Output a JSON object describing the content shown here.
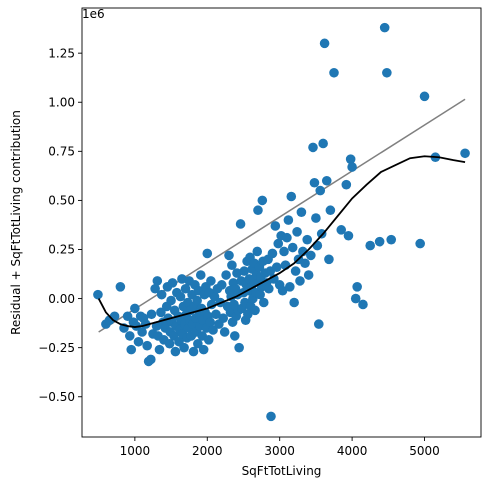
{
  "chart_data": {
    "type": "scatter",
    "xlabel": "SqFtTotLiving",
    "ylabel": "Residual + SqFtTotLiving contribution",
    "y_offset_label": "1e6",
    "xlim": [
      270,
      5780
    ],
    "ylim": [
      -0.705,
      1.48
    ],
    "y_scale_note": "y values in units of 1e6",
    "grid": false,
    "x_ticks": [
      {
        "value": 1000,
        "label": "1000"
      },
      {
        "value": 2000,
        "label": "2000"
      },
      {
        "value": 3000,
        "label": "3000"
      },
      {
        "value": 4000,
        "label": "4000"
      },
      {
        "value": 5000,
        "label": "5000"
      }
    ],
    "y_ticks": [
      {
        "value": -0.5,
        "label": "−0.50"
      },
      {
        "value": -0.25,
        "label": "−0.25"
      },
      {
        "value": 0.0,
        "label": "0.00"
      },
      {
        "value": 0.25,
        "label": "0.25"
      },
      {
        "value": 0.5,
        "label": "0.50"
      },
      {
        "value": 0.75,
        "label": "0.75"
      },
      {
        "value": 1.0,
        "label": "1.00"
      },
      {
        "value": 1.25,
        "label": "1.25"
      }
    ],
    "colors": {
      "points": "#1f77b4",
      "linear_fit": "#808080",
      "smooth_fit": "#000000",
      "axes": "#000000"
    },
    "linear_fit": [
      [
        500,
        -0.17
      ],
      [
        5560,
        1.015
      ]
    ],
    "smooth_fit": [
      [
        500,
        0.0
      ],
      [
        600,
        -0.07
      ],
      [
        700,
        -0.11
      ],
      [
        800,
        -0.13
      ],
      [
        900,
        -0.14
      ],
      [
        1000,
        -0.145
      ],
      [
        1100,
        -0.14
      ],
      [
        1200,
        -0.13
      ],
      [
        1400,
        -0.11
      ],
      [
        1600,
        -0.09
      ],
      [
        1800,
        -0.07
      ],
      [
        2000,
        -0.05
      ],
      [
        2200,
        -0.02
      ],
      [
        2400,
        0.01
      ],
      [
        2600,
        0.05
      ],
      [
        2800,
        0.09
      ],
      [
        3000,
        0.13
      ],
      [
        3200,
        0.18
      ],
      [
        3400,
        0.25
      ],
      [
        3600,
        0.33
      ],
      [
        3800,
        0.42
      ],
      [
        4000,
        0.51
      ],
      [
        4200,
        0.58
      ],
      [
        4400,
        0.645
      ],
      [
        4600,
        0.68
      ],
      [
        4800,
        0.715
      ],
      [
        5000,
        0.725
      ],
      [
        5200,
        0.72
      ],
      [
        5400,
        0.705
      ],
      [
        5560,
        0.695
      ]
    ],
    "points": [
      [
        490,
        0.02
      ],
      [
        600,
        -0.13
      ],
      [
        650,
        -0.11
      ],
      [
        720,
        -0.09
      ],
      [
        800,
        0.06
      ],
      [
        850,
        -0.15
      ],
      [
        900,
        -0.09
      ],
      [
        930,
        -0.19
      ],
      [
        950,
        -0.26
      ],
      [
        980,
        -0.12
      ],
      [
        1000,
        -0.05
      ],
      [
        1020,
        -0.14
      ],
      [
        1050,
        -0.22
      ],
      [
        1080,
        -0.09
      ],
      [
        1100,
        -0.17
      ],
      [
        1120,
        -0.1
      ],
      [
        1150,
        -0.13
      ],
      [
        1170,
        -0.24
      ],
      [
        1190,
        -0.32
      ],
      [
        1220,
        -0.31
      ],
      [
        1230,
        -0.08
      ],
      [
        1250,
        -0.18
      ],
      [
        1280,
        0.05
      ],
      [
        1300,
        -0.14
      ],
      [
        1310,
        0.09
      ],
      [
        1320,
        -0.19
      ],
      [
        1340,
        -0.26
      ],
      [
        1360,
        -0.07
      ],
      [
        1370,
        0.02
      ],
      [
        1390,
        -0.12
      ],
      [
        1400,
        -0.21
      ],
      [
        1420,
        -0.15
      ],
      [
        1440,
        -0.04
      ],
      [
        1450,
        0.06
      ],
      [
        1460,
        -0.1
      ],
      [
        1480,
        -0.23
      ],
      [
        1490,
        -0.17
      ],
      [
        1500,
        -0.01
      ],
      [
        1510,
        -0.12
      ],
      [
        1520,
        0.08
      ],
      [
        1540,
        -0.19
      ],
      [
        1550,
        -0.06
      ],
      [
        1560,
        -0.27
      ],
      [
        1570,
        -0.14
      ],
      [
        1580,
        0.03
      ],
      [
        1600,
        -0.09
      ],
      [
        1610,
        -0.22
      ],
      [
        1620,
        -0.16
      ],
      [
        1630,
        0.01
      ],
      [
        1640,
        -0.11
      ],
      [
        1650,
        0.1
      ],
      [
        1660,
        -0.18
      ],
      [
        1670,
        -0.04
      ],
      [
        1680,
        -0.25
      ],
      [
        1690,
        -0.13
      ],
      [
        1700,
        0.05
      ],
      [
        1710,
        -0.08
      ],
      [
        1720,
        -0.2
      ],
      [
        1730,
        -0.02
      ],
      [
        1740,
        -0.15
      ],
      [
        1750,
        0.09
      ],
      [
        1760,
        -0.11
      ],
      [
        1770,
        -0.06
      ],
      [
        1780,
        -0.19
      ],
      [
        1790,
        0.02
      ],
      [
        1800,
        -0.13
      ],
      [
        1810,
        -0.27
      ],
      [
        1820,
        -0.04
      ],
      [
        1830,
        0.07
      ],
      [
        1840,
        -0.1
      ],
      [
        1850,
        -0.17
      ],
      [
        1860,
        -0.01
      ],
      [
        1870,
        -0.23
      ],
      [
        1880,
        0.04
      ],
      [
        1890,
        -0.08
      ],
      [
        1900,
        -0.14
      ],
      [
        1910,
        0.12
      ],
      [
        1920,
        -0.05
      ],
      [
        1930,
        -0.19
      ],
      [
        1940,
        -0.11
      ],
      [
        1950,
        -0.26
      ],
      [
        1960,
        0.02
      ],
      [
        1970,
        -0.07
      ],
      [
        1980,
        0.06
      ],
      [
        1990,
        -0.15
      ],
      [
        2000,
        0.23
      ],
      [
        2010,
        -0.09
      ],
      [
        2020,
        -0.21
      ],
      [
        2030,
        0.03
      ],
      [
        2040,
        -0.12
      ],
      [
        2050,
        0.09
      ],
      [
        2060,
        -0.03
      ],
      [
        2080,
        -0.16
      ],
      [
        2100,
        0.01
      ],
      [
        2120,
        -0.08
      ],
      [
        2140,
        0.05
      ],
      [
        2160,
        -0.13
      ],
      [
        2180,
        -0.02
      ],
      [
        2200,
        0.07
      ],
      [
        2220,
        -0.1
      ],
      [
        2240,
        -0.17
      ],
      [
        2260,
        0.12
      ],
      [
        2280,
        -0.04
      ],
      [
        2300,
        0.22
      ],
      [
        2310,
        0.04
      ],
      [
        2320,
        -0.07
      ],
      [
        2330,
        0.01
      ],
      [
        2340,
        0.17
      ],
      [
        2350,
        -0.12
      ],
      [
        2360,
        0.08
      ],
      [
        2370,
        -0.03
      ],
      [
        2380,
        -0.19
      ],
      [
        2390,
        0.05
      ],
      [
        2400,
        -0.09
      ],
      [
        2410,
        0.13
      ],
      [
        2420,
        0.02
      ],
      [
        2430,
        -0.06
      ],
      [
        2440,
        -0.25
      ],
      [
        2460,
        0.38
      ],
      [
        2470,
        0.09
      ],
      [
        2480,
        -0.05
      ],
      [
        2500,
        0.03
      ],
      [
        2510,
        0.14
      ],
      [
        2520,
        -0.02
      ],
      [
        2530,
        -0.11
      ],
      [
        2540,
        0.07
      ],
      [
        2550,
        0.19
      ],
      [
        2560,
        -0.08
      ],
      [
        2570,
        0.04
      ],
      [
        2580,
        0.1
      ],
      [
        2590,
        0.21
      ],
      [
        2600,
        -0.04
      ],
      [
        2610,
        0.06
      ],
      [
        2620,
        0.15
      ],
      [
        2630,
        0.0
      ],
      [
        2640,
        0.09
      ],
      [
        2650,
        0.18
      ],
      [
        2660,
        -0.06
      ],
      [
        2670,
        0.03
      ],
      [
        2680,
        0.12
      ],
      [
        2690,
        0.24
      ],
      [
        2700,
        0.45
      ],
      [
        2710,
        0.08
      ],
      [
        2720,
        0.16
      ],
      [
        2730,
        0.02
      ],
      [
        2740,
        0.11
      ],
      [
        2750,
        0.06
      ],
      [
        2760,
        0.5
      ],
      [
        2770,
        0.19
      ],
      [
        2780,
        -0.02
      ],
      [
        2800,
        0.13
      ],
      [
        2820,
        0.08
      ],
      [
        2840,
        0.2
      ],
      [
        2850,
        0.05
      ],
      [
        2870,
        0.14
      ],
      [
        2880,
        -0.6
      ],
      [
        2900,
        0.23
      ],
      [
        2920,
        0.1
      ],
      [
        2940,
        0.37
      ],
      [
        2960,
        0.16
      ],
      [
        2980,
        0.28
      ],
      [
        3000,
        0.07
      ],
      [
        3020,
        0.32
      ],
      [
        3040,
        0.04
      ],
      [
        3060,
        0.24
      ],
      [
        3080,
        0.17
      ],
      [
        3100,
        0.31
      ],
      [
        3120,
        0.4
      ],
      [
        3140,
        0.06
      ],
      [
        3160,
        0.52
      ],
      [
        3180,
        0.26
      ],
      [
        3200,
        -0.02
      ],
      [
        3220,
        0.14
      ],
      [
        3240,
        0.34
      ],
      [
        3260,
        0.2
      ],
      [
        3280,
        0.09
      ],
      [
        3300,
        0.44
      ],
      [
        3320,
        0.24
      ],
      [
        3350,
        0.18
      ],
      [
        3380,
        0.3
      ],
      [
        3400,
        0.12
      ],
      [
        3430,
        0.22
      ],
      [
        3460,
        0.77
      ],
      [
        3480,
        0.59
      ],
      [
        3500,
        0.41
      ],
      [
        3520,
        0.27
      ],
      [
        3540,
        -0.13
      ],
      [
        3560,
        0.55
      ],
      [
        3580,
        0.33
      ],
      [
        3600,
        0.79
      ],
      [
        3620,
        1.3
      ],
      [
        3650,
        0.6
      ],
      [
        3680,
        0.2
      ],
      [
        3700,
        0.45
      ],
      [
        3750,
        1.15
      ],
      [
        3850,
        0.35
      ],
      [
        3920,
        0.58
      ],
      [
        3950,
        0.32
      ],
      [
        3980,
        0.71
      ],
      [
        4000,
        0.67
      ],
      [
        4050,
        0.0
      ],
      [
        4070,
        0.06
      ],
      [
        4150,
        -0.03
      ],
      [
        4250,
        0.27
      ],
      [
        4380,
        0.29
      ],
      [
        4450,
        1.38
      ],
      [
        4480,
        1.15
      ],
      [
        4540,
        0.3
      ],
      [
        4940,
        0.28
      ],
      [
        5000,
        1.03
      ],
      [
        5150,
        0.72
      ],
      [
        5560,
        0.74
      ]
    ]
  }
}
